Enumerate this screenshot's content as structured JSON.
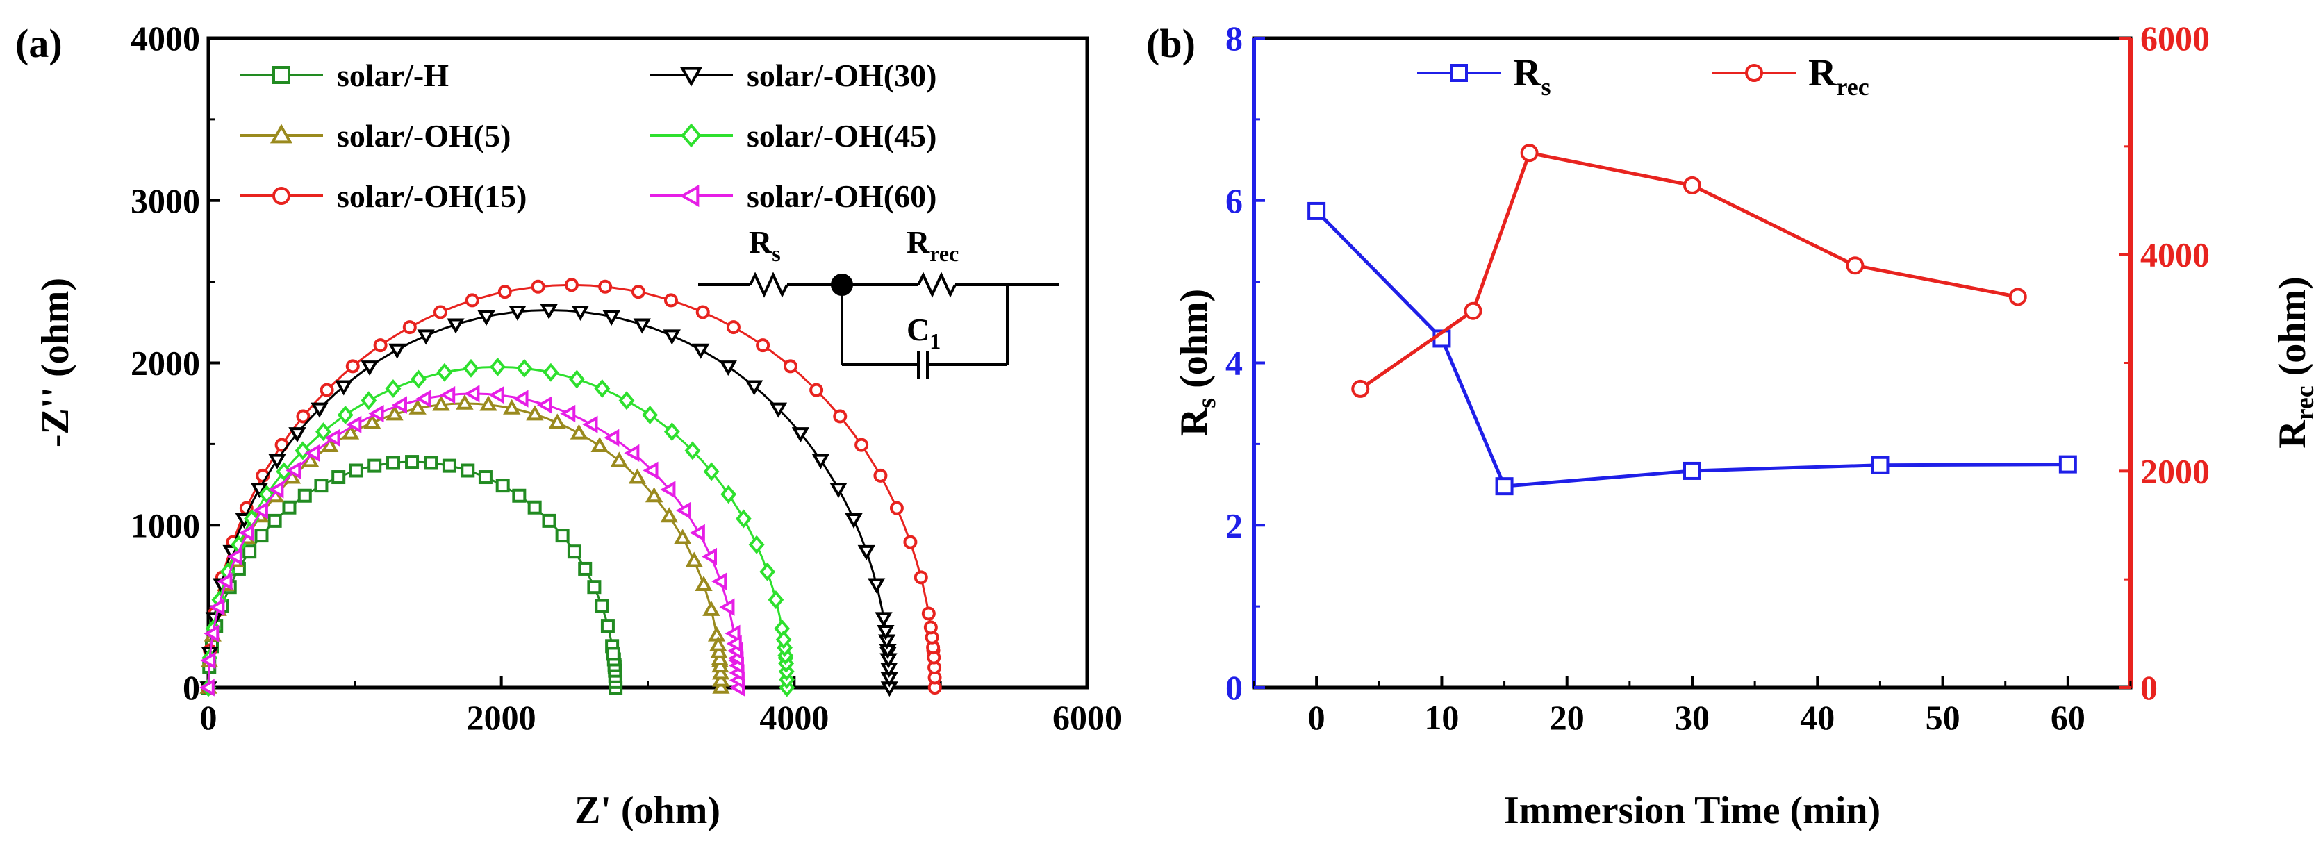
{
  "chart_data": [
    {
      "panel": "(a)",
      "type": "scatter",
      "xlabel": "Z' (ohm)",
      "ylabel": "-Z'' (ohm)",
      "xlim": [
        0,
        6000
      ],
      "ylim": [
        0,
        4000
      ],
      "xticks": [
        "0",
        "2000",
        "4000",
        "6000"
      ],
      "yticks": [
        "0",
        "1000",
        "2000",
        "3000",
        "4000"
      ],
      "legend_position": "top",
      "series": [
        {
          "name": "solar/-H",
          "color": "#228B22",
          "marker": "square",
          "r0": 0,
          "r1": 2780
        },
        {
          "name": "solar/-OH(5)",
          "color": "#9A8A1E",
          "marker": "triangle-up",
          "r0": 0,
          "r1": 3500
        },
        {
          "name": "solar/-OH(15)",
          "color": "#E8231F",
          "marker": "circle",
          "r0": 0,
          "r1": 4960
        },
        {
          "name": "solar/-OH(30)",
          "color": "#000000",
          "marker": "triangle-down",
          "r0": 0,
          "r1": 4650
        },
        {
          "name": "solar/-OH(45)",
          "color": "#2EE02E",
          "marker": "diamond",
          "r0": 0,
          "r1": 3950
        },
        {
          "name": "solar/-OH(60)",
          "color": "#E61EE6",
          "marker": "triangle-left",
          "r0": 0,
          "r1": 3620
        }
      ],
      "inset": {
        "labels": {
          "rs_main": "R",
          "rs_sub": "s",
          "rrec_main": "R",
          "rrec_sub": "rec",
          "c_main": "C",
          "c_sub": "1"
        }
      }
    },
    {
      "panel": "(b)",
      "type": "line",
      "xlabel": "Immersion Time (min)",
      "ylabel_left": {
        "main": "R",
        "sub": "s",
        "unit": " (ohm)"
      },
      "ylabel_right": {
        "main": "R",
        "sub": "rec",
        "unit": " (ohm)"
      },
      "xlim": [
        -5,
        65
      ],
      "ylim_left": [
        0,
        8
      ],
      "ylim_right": [
        0,
        6000
      ],
      "xticks": [
        "0",
        "10",
        "20",
        "30",
        "40",
        "50",
        "60"
      ],
      "yticks_left": [
        "0",
        "2",
        "4",
        "6",
        "8"
      ],
      "yticks_right": [
        "0",
        "2000",
        "4000",
        "6000"
      ],
      "legend_position": "top",
      "series": [
        {
          "name_main": "R",
          "name_sub": "s",
          "axis": "left",
          "color": "#1F1FE8",
          "marker": "square",
          "x": [
            0,
            10,
            15,
            30,
            45,
            60
          ],
          "y": [
            5.87,
            4.3,
            2.48,
            2.67,
            2.74,
            2.75
          ]
        },
        {
          "name_main": "R",
          "name_sub": "rec",
          "axis": "right",
          "color": "#E8231F",
          "marker": "circle",
          "x": [
            3.5,
            12.5,
            17,
            30,
            43,
            56
          ],
          "y": [
            2760,
            3480,
            4940,
            4640,
            3900,
            3610
          ]
        }
      ]
    }
  ]
}
